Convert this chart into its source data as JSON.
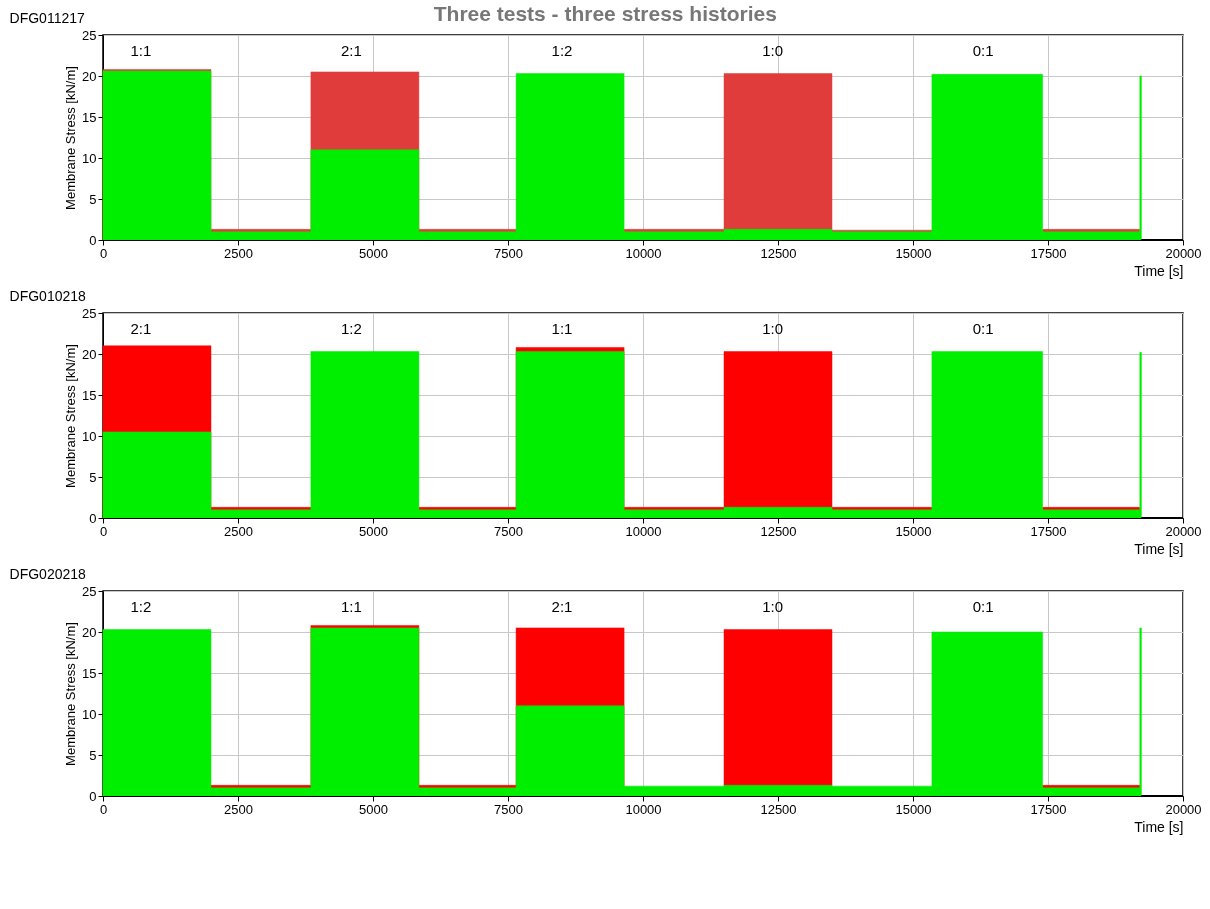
{
  "chart_data": [
    {
      "type": "area",
      "title": "DFG011217",
      "subtitle": "Three tests - three stress histories",
      "xlabel": "Time [s]",
      "ylabel": "Membrane Stress [kN/m]",
      "xlim": [
        0,
        20000
      ],
      "ylim": [
        0,
        25
      ],
      "xticks": [
        0,
        2500,
        5000,
        7500,
        10000,
        12500,
        15000,
        17500,
        20000
      ],
      "yticks": [
        0,
        5,
        10,
        15,
        20,
        25
      ],
      "grid": true,
      "annotations": [
        "1:1",
        "2:1",
        "1:2",
        "1:0",
        "0:1"
      ],
      "series": [
        {
          "color": "#e03c3c",
          "x": [
            0,
            2000,
            2000,
            3850,
            3850,
            5850,
            5850,
            7650,
            null,
            9650,
            11500,
            11500,
            13500,
            13500,
            15350,
            null,
            17400,
            19200
          ],
          "values": [
            20.8,
            20.8,
            1.3,
            1.3,
            20.5,
            20.5,
            1.3,
            1.3,
            null,
            1.3,
            1.3,
            20.3,
            20.3,
            1.2,
            1.2,
            null,
            1.3,
            1.3
          ]
        },
        {
          "color": "#00ee00",
          "x": [
            0,
            2000,
            2000,
            3850,
            3850,
            5850,
            5850,
            7650,
            7650,
            9650,
            9650,
            11500,
            11500,
            13500,
            13500,
            15350,
            15350,
            17400,
            17400,
            19200,
            19200,
            19230
          ],
          "values": [
            20.6,
            20.6,
            1.0,
            1.0,
            11,
            11,
            1.0,
            1.0,
            20.3,
            20.3,
            1.0,
            1.0,
            1.3,
            1.3,
            1.0,
            1.0,
            20.2,
            20.2,
            1.0,
            1.0,
            20,
            20
          ]
        },
        {
          "type": "line",
          "color": "#000000",
          "x": [
            19230,
            20000
          ],
          "values": [
            0,
            0
          ]
        }
      ]
    },
    {
      "type": "area",
      "title": "DFG010218",
      "xlabel": "Time [s]",
      "ylabel": "Membrane Stress [kN/m]",
      "xlim": [
        0,
        20000
      ],
      "ylim": [
        0,
        25
      ],
      "xticks": [
        0,
        2500,
        5000,
        7500,
        10000,
        12500,
        15000,
        17500,
        20000
      ],
      "yticks": [
        0,
        5,
        10,
        15,
        20,
        25
      ],
      "grid": true,
      "annotations": [
        "2:1",
        "1:2",
        "1:1",
        "1:0",
        "0:1"
      ],
      "series": [
        {
          "color": "#ff0000",
          "x": [
            0,
            2000,
            2000,
            3850,
            null,
            5850,
            7650,
            7650,
            9650,
            9650,
            11500,
            11500,
            13500,
            13500,
            15350,
            null,
            17400,
            19200
          ],
          "values": [
            21,
            21,
            1.3,
            1.3,
            null,
            1.3,
            1.3,
            20.8,
            20.8,
            1.3,
            1.3,
            20.3,
            20.3,
            1.3,
            1.3,
            null,
            1.3,
            1.3
          ]
        },
        {
          "color": "#00ee00",
          "x": [
            0,
            2000,
            2000,
            3850,
            3850,
            5850,
            5850,
            7650,
            7650,
            9650,
            9650,
            11500,
            11500,
            13500,
            13500,
            15350,
            15350,
            17400,
            17400,
            19200,
            19200,
            19230
          ],
          "values": [
            10.5,
            10.5,
            1.0,
            1.0,
            20.3,
            20.3,
            1.0,
            1.0,
            20.3,
            20.3,
            1.0,
            1.0,
            1.3,
            1.3,
            1.0,
            1.0,
            20.3,
            20.3,
            1.0,
            1.0,
            20.2,
            20.2
          ]
        },
        {
          "type": "line",
          "color": "#000000",
          "x": [
            19230,
            20000
          ],
          "values": [
            0,
            0
          ]
        }
      ]
    },
    {
      "type": "area",
      "title": "DFG020218",
      "xlabel": "Time [s]",
      "ylabel": "Membrane Stress [kN/m]",
      "xlim": [
        0,
        20000
      ],
      "ylim": [
        0,
        25
      ],
      "xticks": [
        0,
        2500,
        5000,
        7500,
        10000,
        12500,
        15000,
        17500,
        20000
      ],
      "yticks": [
        0,
        5,
        10,
        15,
        20,
        25
      ],
      "grid": true,
      "annotations": [
        "1:2",
        "1:1",
        "2:1",
        "1:0",
        "0:1"
      ],
      "series": [
        {
          "color": "#ff0000",
          "x": [
            2000,
            3850,
            3850,
            5850,
            5850,
            7650,
            7650,
            9650,
            null,
            11500,
            13500,
            null,
            17400,
            19200
          ],
          "values": [
            1.3,
            1.3,
            20.8,
            20.8,
            1.3,
            1.3,
            20.5,
            20.5,
            null,
            20.3,
            20.3,
            null,
            1.3,
            1.3
          ]
        },
        {
          "color": "#00ee00",
          "x": [
            0,
            2000,
            2000,
            3850,
            3850,
            5850,
            5850,
            7650,
            7650,
            9650,
            9650,
            11500,
            11500,
            13500,
            13500,
            15350,
            15350,
            17400,
            17400,
            19200,
            19200,
            19230
          ],
          "values": [
            20.3,
            20.3,
            1.0,
            1.0,
            20.5,
            20.5,
            1.0,
            1.0,
            11,
            11,
            1.2,
            1.2,
            1.3,
            1.3,
            1.2,
            1.2,
            20,
            20,
            1.0,
            1.0,
            20.5,
            20.5
          ]
        },
        {
          "type": "line",
          "color": "#000000",
          "x": [
            19230,
            20000
          ],
          "values": [
            0,
            0
          ]
        }
      ]
    }
  ]
}
